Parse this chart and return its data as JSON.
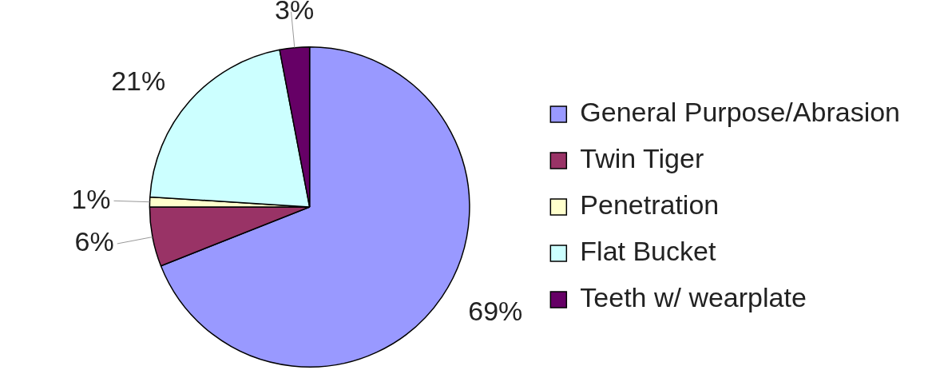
{
  "chart_data": {
    "type": "pie",
    "categories": [
      "General Purpose/Abrasion",
      "Twin Tiger",
      "Penetration",
      "Flat Bucket",
      "Teeth w/ wearplate"
    ],
    "values": [
      69,
      6,
      1,
      21,
      3
    ],
    "colors": [
      "#9999ff",
      "#993366",
      "#ffffcc",
      "#ccffff",
      "#660066"
    ],
    "value_labels": [
      "69%",
      "6%",
      "1%",
      "21%",
      "3%"
    ],
    "legend": "right"
  }
}
